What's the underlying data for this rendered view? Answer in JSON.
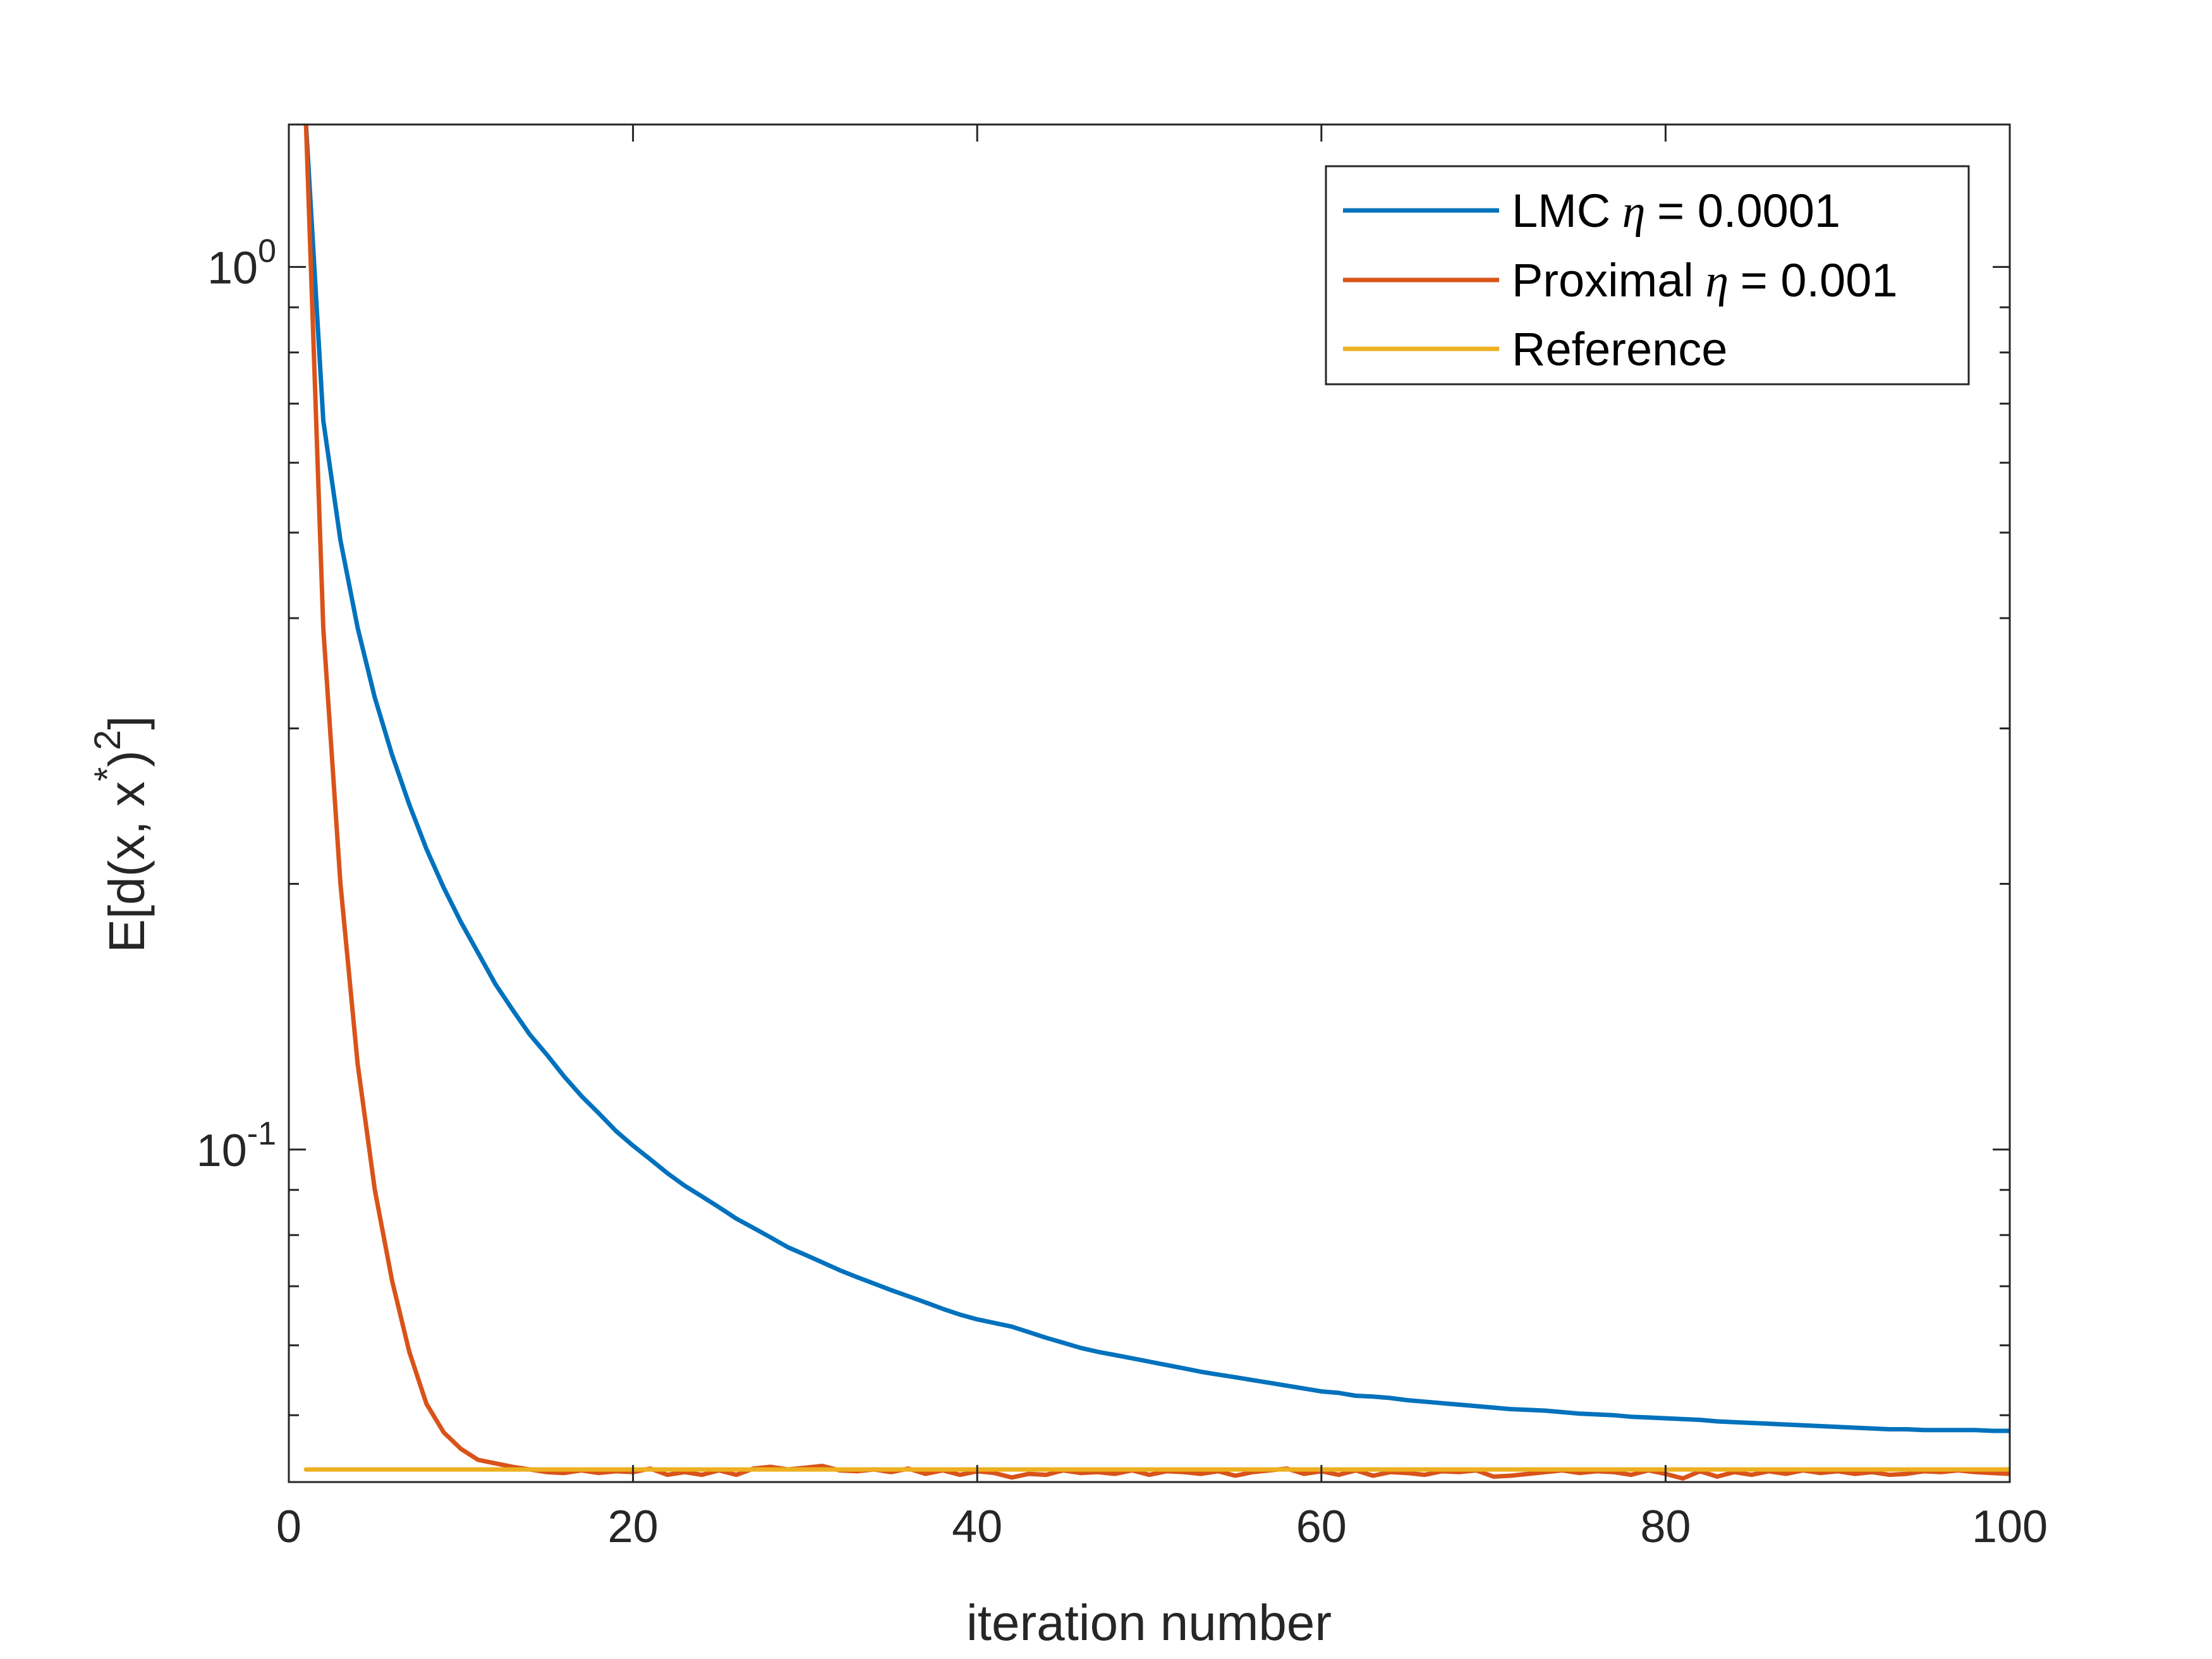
{
  "chart_data": {
    "type": "line",
    "title": "",
    "xlabel": "iteration number",
    "ylabel": "E[d(x, x^*)^2]",
    "ylabel_parts": {
      "main": "E[d(x, x",
      "star": "*",
      "close": ")",
      "sq": "2",
      "end": "]"
    },
    "xlim": [
      0,
      100
    ],
    "ylim": [
      0.042,
      1.45
    ],
    "yscale": "log",
    "x_ticks": [
      "0",
      "20",
      "40",
      "60",
      "80",
      "100"
    ],
    "y_ticks": [
      {
        "base": "10",
        "exp": "0"
      },
      {
        "base": "10",
        "exp": "-1"
      }
    ],
    "legend_position": "top-right",
    "series": [
      {
        "name": "LMC η = 0.0001",
        "legend_prefix": "LMC",
        "legend_eta": "η",
        "legend_suffix": "= 0.0001",
        "color": "#0072BD",
        "x_start": 1,
        "values": [
          1.45,
          0.67,
          0.49,
          0.39,
          0.325,
          0.28,
          0.246,
          0.219,
          0.198,
          0.181,
          0.167,
          0.154,
          0.144,
          0.135,
          0.128,
          0.121,
          0.115,
          0.11,
          0.105,
          0.101,
          0.0975,
          0.094,
          0.091,
          0.0885,
          0.086,
          0.0835,
          0.0815,
          0.0795,
          0.0775,
          0.076,
          0.0745,
          0.073,
          0.0717,
          0.0705,
          0.0693,
          0.0682,
          0.0671,
          0.066,
          0.065,
          0.0642,
          0.0636,
          0.063,
          0.0621,
          0.0612,
          0.0604,
          0.0596,
          0.059,
          0.0585,
          0.058,
          0.0575,
          0.057,
          0.0565,
          0.056,
          0.0556,
          0.0552,
          0.0548,
          0.0544,
          0.054,
          0.0536,
          0.0532,
          0.053,
          0.0526,
          0.0525,
          0.0523,
          0.052,
          0.0518,
          0.0516,
          0.0514,
          0.0512,
          0.051,
          0.0508,
          0.0507,
          0.0506,
          0.0504,
          0.0502,
          0.0501,
          0.05,
          0.0498,
          0.0497,
          0.0496,
          0.0495,
          0.0494,
          0.0492,
          0.0491,
          0.049,
          0.0489,
          0.0488,
          0.0487,
          0.0486,
          0.0485,
          0.0484,
          0.0483,
          0.0482,
          0.0482,
          0.0481,
          0.0481,
          0.0481,
          0.0481,
          0.048,
          0.048
        ]
      },
      {
        "name": "Proximal η = 0.001",
        "legend_prefix": "Proximal",
        "legend_eta": "η",
        "legend_suffix": "= 0.001",
        "color": "#D95319",
        "x_start": 1,
        "values": [
          1.45,
          0.39,
          0.2,
          0.125,
          0.09,
          0.071,
          0.059,
          0.0515,
          0.0478,
          0.0458,
          0.0445,
          0.0441,
          0.0437,
          0.0434,
          0.0431,
          0.043,
          0.0433,
          0.043,
          0.0432,
          0.0431,
          0.0435,
          0.0428,
          0.0431,
          0.0428,
          0.0433,
          0.0428,
          0.0435,
          0.0437,
          0.0434,
          0.0436,
          0.0438,
          0.0433,
          0.0432,
          0.0434,
          0.0431,
          0.0435,
          0.0429,
          0.0433,
          0.0428,
          0.0432,
          0.043,
          0.0425,
          0.0429,
          0.0428,
          0.0433,
          0.043,
          0.0431,
          0.0429,
          0.0433,
          0.0428,
          0.0432,
          0.0431,
          0.0429,
          0.0432,
          0.0427,
          0.0431,
          0.0433,
          0.0435,
          0.0429,
          0.0432,
          0.0428,
          0.0433,
          0.0427,
          0.0431,
          0.043,
          0.0428,
          0.0432,
          0.0431,
          0.0433,
          0.0426,
          0.0427,
          0.0429,
          0.0431,
          0.0433,
          0.043,
          0.0432,
          0.0431,
          0.0428,
          0.0433,
          0.0429,
          0.0424,
          0.0432,
          0.0426,
          0.0431,
          0.0428,
          0.0432,
          0.0429,
          0.0433,
          0.043,
          0.0432,
          0.0429,
          0.0431,
          0.0428,
          0.0429,
          0.0432,
          0.0431,
          0.0433,
          0.0431,
          0.043,
          0.0429
        ]
      },
      {
        "name": "Reference",
        "legend_prefix": "Reference",
        "legend_eta": "",
        "legend_suffix": "",
        "color": "#EDB120",
        "x": [
          1,
          100
        ],
        "values": [
          0.0434,
          0.0434
        ]
      }
    ]
  }
}
